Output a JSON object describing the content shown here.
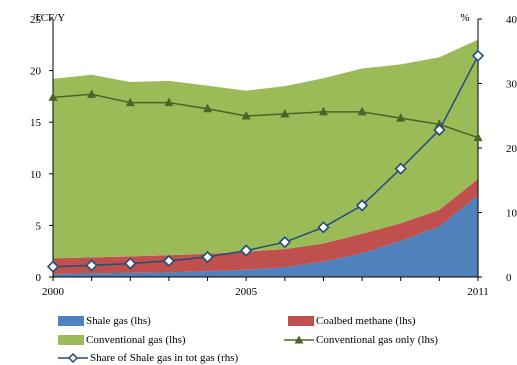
{
  "chart_data": {
    "type": "area",
    "x": [
      2000,
      2001,
      2002,
      2003,
      2004,
      2005,
      2006,
      2007,
      2008,
      2009,
      2010,
      2011
    ],
    "x_tick_labels": [
      "2000",
      "2005",
      "2011"
    ],
    "left_axis": {
      "label": "TCF/Y",
      "ylim": [
        0,
        25
      ],
      "ticks": [
        0,
        5,
        10,
        15,
        20,
        25
      ]
    },
    "right_axis": {
      "label": "%",
      "ylim": [
        0,
        40
      ],
      "ticks": [
        0,
        10,
        20,
        30,
        40
      ]
    },
    "grid": false,
    "legend_position": "bottom",
    "series": [
      {
        "name": "Shale gas (lhs)",
        "kind": "stacked-area",
        "axis": "left",
        "color": "#4f81bd",
        "values": [
          0.3,
          0.35,
          0.4,
          0.45,
          0.55,
          0.7,
          0.95,
          1.5,
          2.3,
          3.5,
          4.9,
          7.9
        ]
      },
      {
        "name": "Coalbed methane (lhs)",
        "kind": "stacked-area",
        "axis": "left",
        "color": "#c0504d",
        "values": [
          1.5,
          1.55,
          1.6,
          1.65,
          1.7,
          1.75,
          1.75,
          1.75,
          1.9,
          1.7,
          1.6,
          1.6
        ]
      },
      {
        "name": "Conventional gas (lhs)",
        "kind": "stacked-area",
        "axis": "left",
        "color": "#9bbb59",
        "values": [
          17.4,
          17.7,
          16.9,
          16.9,
          16.3,
          15.6,
          15.8,
          16.0,
          16.0,
          15.4,
          14.8,
          13.5
        ]
      },
      {
        "name": "Conventional gas only (lhs)",
        "kind": "line",
        "axis": "left",
        "color": "#4f6228",
        "marker": "triangle",
        "values": [
          17.4,
          17.7,
          16.9,
          16.9,
          16.3,
          15.6,
          15.8,
          16.0,
          16.0,
          15.4,
          14.8,
          13.5
        ]
      },
      {
        "name": "Share of Shale gas in tot gas (rhs)",
        "kind": "line",
        "axis": "right",
        "color": "#1f4e79",
        "marker": "diamond",
        "values": [
          1.6,
          1.8,
          2.1,
          2.5,
          3.1,
          4.1,
          5.4,
          7.7,
          11.1,
          16.8,
          22.8,
          34.3
        ]
      }
    ]
  },
  "legend": {
    "shale": "Shale gas (lhs)",
    "coalbed": "Coalbed methane (lhs)",
    "conventional": "Conventional gas (lhs)",
    "conventional_only": "Conventional gas only (lhs)",
    "share": "Share of Shale gas in tot gas (rhs)"
  }
}
